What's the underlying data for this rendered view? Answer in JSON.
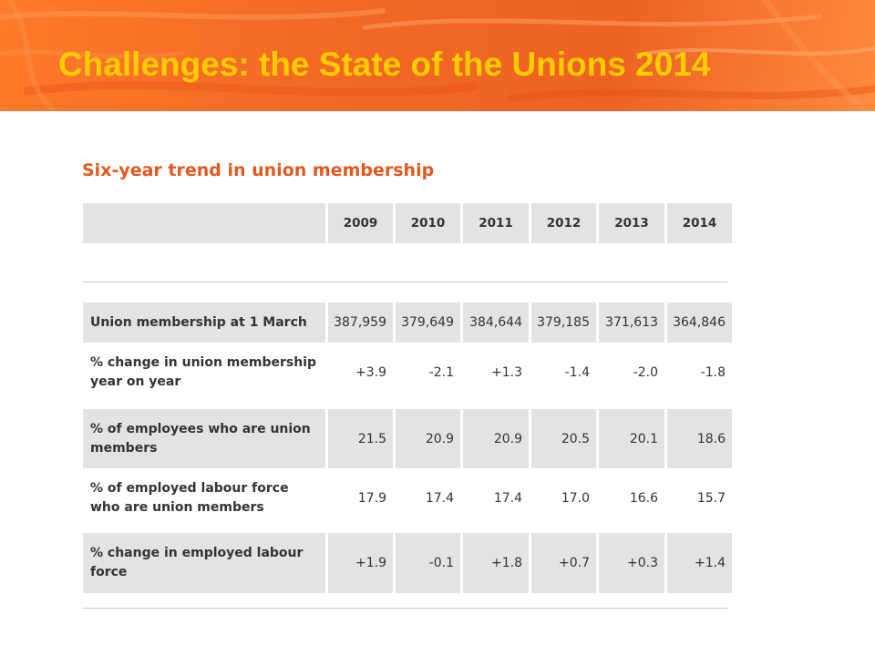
{
  "slide": {
    "title": "Challenges: the State of the Unions 2014"
  },
  "table": {
    "title": "Six-year trend in union membership",
    "years": [
      "2009",
      "2010",
      "2011",
      "2012",
      "2013",
      "2014"
    ],
    "rows": [
      {
        "label": "Union membership at 1 March",
        "values": [
          "387,959",
          "379,649",
          "384,644",
          "379,185",
          "371,613",
          "364,846"
        ]
      },
      {
        "label": "% change in union membership year on year",
        "values": [
          "+3.9",
          "-2.1",
          "+1.3",
          "-1.4",
          "-2.0",
          "-1.8"
        ]
      },
      {
        "label": "% of employees who are union members",
        "values": [
          "21.5",
          "20.9",
          "20.9",
          "20.5",
          "20.1",
          "18.6"
        ]
      },
      {
        "label": "% of employed labour force who are union members",
        "values": [
          "17.9",
          "17.4",
          "17.4",
          "17.0",
          "16.6",
          "15.7"
        ]
      },
      {
        "label": "% change in employed labour force",
        "values": [
          "+1.9",
          "-0.1",
          "+1.8",
          "+0.7",
          "+0.3",
          "+1.4"
        ]
      }
    ]
  },
  "colors": {
    "banner": "#f26a24",
    "title_text": "#ffcc00",
    "table_title": "#e2581e",
    "row_shade": "#e3e3e3"
  }
}
